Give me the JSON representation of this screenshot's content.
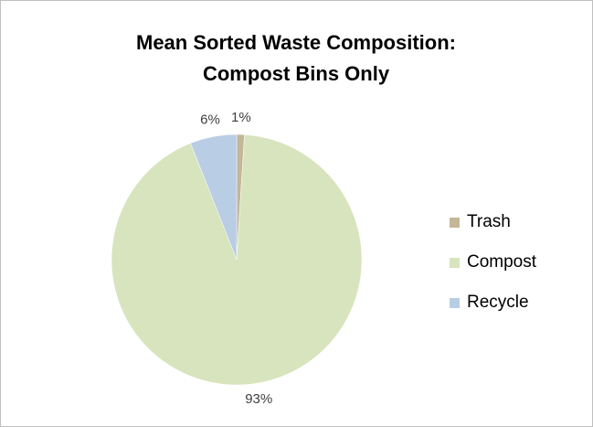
{
  "chart_data": {
    "type": "pie",
    "title": [
      "Mean Sorted Waste Composition:",
      "Compost Bins Only"
    ],
    "categories": [
      "Trash",
      "Compost",
      "Recycle"
    ],
    "values": [
      1,
      93,
      6
    ],
    "value_labels": [
      "1%",
      "93%",
      "6%"
    ],
    "colors": [
      "#c4b797",
      "#d7e4bd",
      "#b9cde5"
    ],
    "legend": "right"
  }
}
